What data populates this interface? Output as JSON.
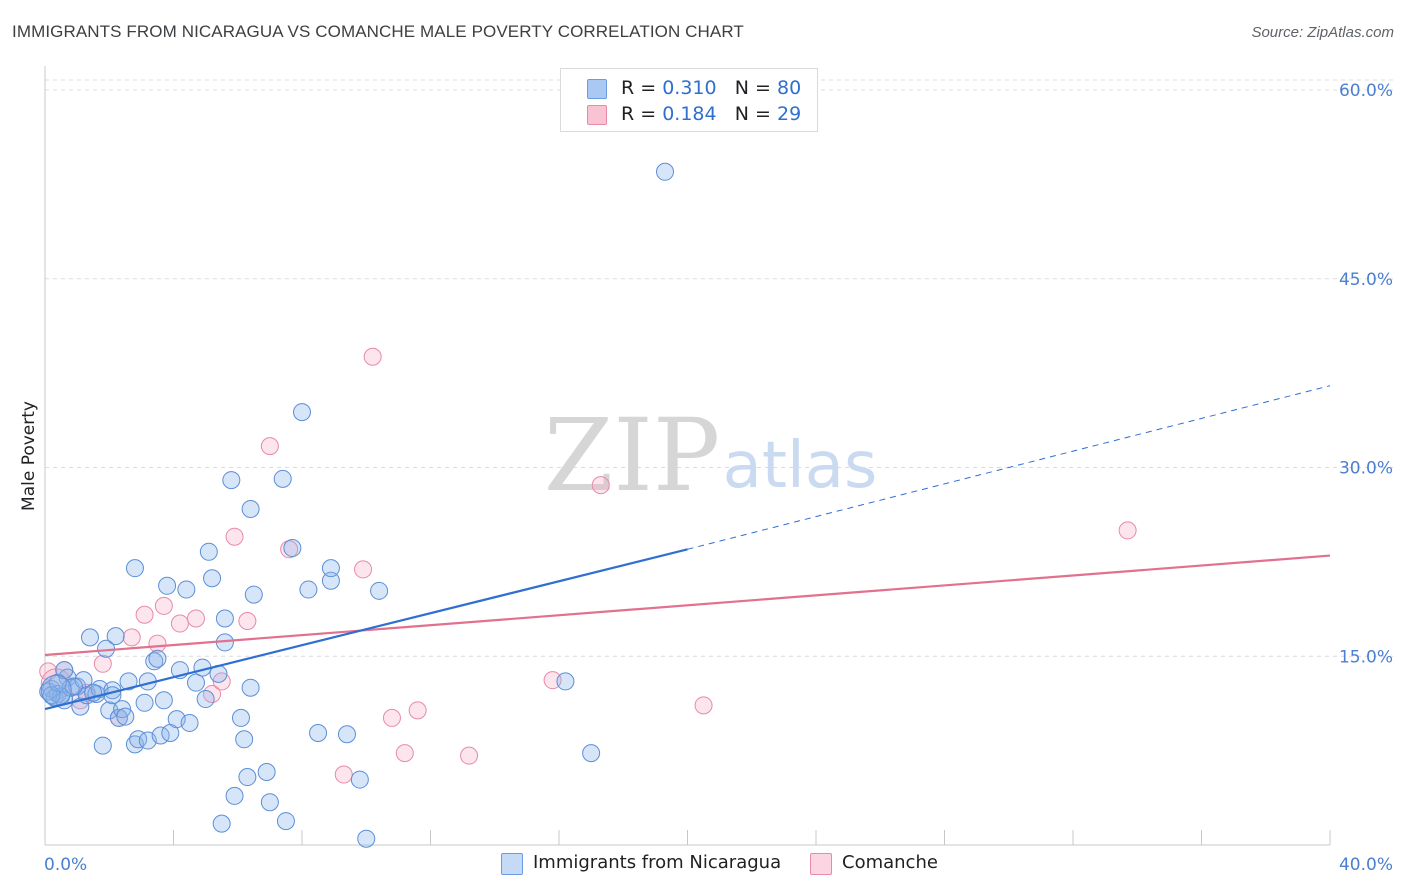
{
  "title": "IMMIGRANTS FROM NICARAGUA VS COMANCHE MALE POVERTY CORRELATION CHART",
  "source": "Source: ZipAtlas.com",
  "watermark": {
    "zip": "ZIP",
    "atlas": "atlas"
  },
  "legend": {
    "rows": [
      {
        "r_label": "R =",
        "r_value": "0.310",
        "n_label": "N =",
        "n_value": "80",
        "fill": "#a9c8f2",
        "stroke": "#6b9be0"
      },
      {
        "r_label": "R =",
        "r_value": "0.184",
        "n_label": "N =",
        "n_value": "29",
        "fill": "#f8c3d3",
        "stroke": "#e98aa8"
      }
    ]
  },
  "bottom_legend": [
    {
      "label": "Immigrants from Nicaragua",
      "fill": "#c5daf6",
      "stroke": "#6b9be0"
    },
    {
      "label": "Comanche",
      "fill": "#fbd5e1",
      "stroke": "#e98aa8"
    }
  ],
  "colors": {
    "blue_point_fill": "rgba(140,180,235,0.35)",
    "blue_point_stroke": "#5b8fd8",
    "pink_point_fill": "rgba(245,170,195,0.30)",
    "pink_point_stroke": "#e88aa9",
    "blue_line": "#2f6fd0",
    "pink_line": "#e2708f",
    "grid": "#dadce0",
    "tick_text": "#4a7fd1"
  },
  "chart_data": {
    "type": "scatter",
    "title": "IMMIGRANTS FROM NICARAGUA VS COMANCHE MALE POVERTY CORRELATION CHART",
    "xlabel": "",
    "ylabel": "Male Poverty",
    "xlim": [
      0,
      40
    ],
    "ylim": [
      0,
      60
    ],
    "x_tick_labels": [
      {
        "value": 0,
        "label": "0.0%"
      },
      {
        "value": 40,
        "label": "40.0%"
      }
    ],
    "y_tick_labels": [
      {
        "value": 15,
        "label": "15.0%"
      },
      {
        "value": 30,
        "label": "30.0%"
      },
      {
        "value": 45,
        "label": "45.0%"
      },
      {
        "value": 60,
        "label": "60.0%"
      }
    ],
    "x_minor_ticks": [
      4,
      8,
      12,
      16,
      20,
      24,
      28,
      32,
      36,
      40
    ],
    "grid": true,
    "legend_position": "top-center",
    "series": [
      {
        "name": "Immigrants from Nicaragua",
        "color": "#5b8fd8",
        "points": [
          [
            0.2,
            12.4
          ],
          [
            0.3,
            11.7
          ],
          [
            0.4,
            12.0
          ],
          [
            0.5,
            11.8
          ],
          [
            0.6,
            11.5
          ],
          [
            0.7,
            13.3
          ],
          [
            0.8,
            12.5
          ],
          [
            1.0,
            12.6
          ],
          [
            1.1,
            11.0
          ],
          [
            1.2,
            13.1
          ],
          [
            1.3,
            11.9
          ],
          [
            1.4,
            16.5
          ],
          [
            1.6,
            12.0
          ],
          [
            1.7,
            12.4
          ],
          [
            1.8,
            7.9
          ],
          [
            1.9,
            15.6
          ],
          [
            2.0,
            10.7
          ],
          [
            2.1,
            12.3
          ],
          [
            2.2,
            16.6
          ],
          [
            2.3,
            10.1
          ],
          [
            2.4,
            10.8
          ],
          [
            2.5,
            10.2
          ],
          [
            2.6,
            13.0
          ],
          [
            2.8,
            8.0
          ],
          [
            2.8,
            22.0
          ],
          [
            2.9,
            8.4
          ],
          [
            3.1,
            11.3
          ],
          [
            3.2,
            13.0
          ],
          [
            3.2,
            8.3
          ],
          [
            3.4,
            14.6
          ],
          [
            3.5,
            14.8
          ],
          [
            3.6,
            8.7
          ],
          [
            3.7,
            11.5
          ],
          [
            3.8,
            20.6
          ],
          [
            3.9,
            8.9
          ],
          [
            4.1,
            10.0
          ],
          [
            4.2,
            13.9
          ],
          [
            4.4,
            20.3
          ],
          [
            4.5,
            9.7
          ],
          [
            4.7,
            12.9
          ],
          [
            4.9,
            14.1
          ],
          [
            5.0,
            11.6
          ],
          [
            5.1,
            23.3
          ],
          [
            5.2,
            21.2
          ],
          [
            5.4,
            13.6
          ],
          [
            5.5,
            1.7
          ],
          [
            5.6,
            18.0
          ],
          [
            5.6,
            16.1
          ],
          [
            5.8,
            29.0
          ],
          [
            5.9,
            3.9
          ],
          [
            6.1,
            10.1
          ],
          [
            6.2,
            8.4
          ],
          [
            6.3,
            5.4
          ],
          [
            6.4,
            26.7
          ],
          [
            6.4,
            12.5
          ],
          [
            6.5,
            19.9
          ],
          [
            6.9,
            5.8
          ],
          [
            7.0,
            3.4
          ],
          [
            7.4,
            29.1
          ],
          [
            7.5,
            1.9
          ],
          [
            7.7,
            23.6
          ],
          [
            8.0,
            34.4
          ],
          [
            8.2,
            20.3
          ],
          [
            8.5,
            8.9
          ],
          [
            8.9,
            21.0
          ],
          [
            8.9,
            22.0
          ],
          [
            9.4,
            8.8
          ],
          [
            9.8,
            5.2
          ],
          [
            10.0,
            0.5
          ],
          [
            10.4,
            20.2
          ],
          [
            16.2,
            13.0
          ],
          [
            17.0,
            7.3
          ],
          [
            19.3,
            53.5
          ],
          [
            0.1,
            12.2
          ],
          [
            0.2,
            11.9
          ],
          [
            0.4,
            12.9
          ],
          [
            0.6,
            13.9
          ],
          [
            0.9,
            12.6
          ],
          [
            1.5,
            12.1
          ],
          [
            2.1,
            11.9
          ]
        ]
      },
      {
        "name": "Comanche",
        "color": "#e88aa9",
        "points": [
          [
            0.1,
            13.8
          ],
          [
            0.6,
            13.9
          ],
          [
            1.1,
            11.5
          ],
          [
            1.3,
            12.1
          ],
          [
            1.8,
            14.4
          ],
          [
            2.3,
            10.1
          ],
          [
            2.7,
            16.5
          ],
          [
            3.1,
            18.3
          ],
          [
            3.5,
            16.0
          ],
          [
            3.7,
            19.0
          ],
          [
            4.2,
            17.6
          ],
          [
            4.7,
            18.0
          ],
          [
            5.2,
            12.0
          ],
          [
            5.5,
            13.0
          ],
          [
            5.9,
            24.5
          ],
          [
            6.3,
            17.8
          ],
          [
            7.0,
            31.7
          ],
          [
            7.6,
            23.5
          ],
          [
            9.3,
            5.6
          ],
          [
            9.9,
            21.9
          ],
          [
            10.2,
            38.8
          ],
          [
            10.8,
            10.1
          ],
          [
            11.2,
            7.3
          ],
          [
            11.6,
            10.7
          ],
          [
            13.2,
            7.1
          ],
          [
            15.8,
            13.1
          ],
          [
            17.3,
            28.6
          ],
          [
            20.5,
            11.1
          ],
          [
            33.7,
            25.0
          ]
        ]
      }
    ],
    "trendlines": [
      {
        "series": "Immigrants from Nicaragua",
        "x0": 0,
        "y0": 10.8,
        "x_solid_end": 20.0,
        "y_solid_end": 23.5,
        "x1": 40,
        "y1": 36.5
      },
      {
        "series": "Comanche",
        "x0": 0,
        "y0": 15.1,
        "x1": 40,
        "y1": 23.0
      }
    ]
  },
  "big_points": [
    {
      "series": "Immigrants from Nicaragua",
      "x": 0.35,
      "y": 12.3
    },
    {
      "series": "Comanche",
      "x": 0.35,
      "y": 12.8
    }
  ]
}
